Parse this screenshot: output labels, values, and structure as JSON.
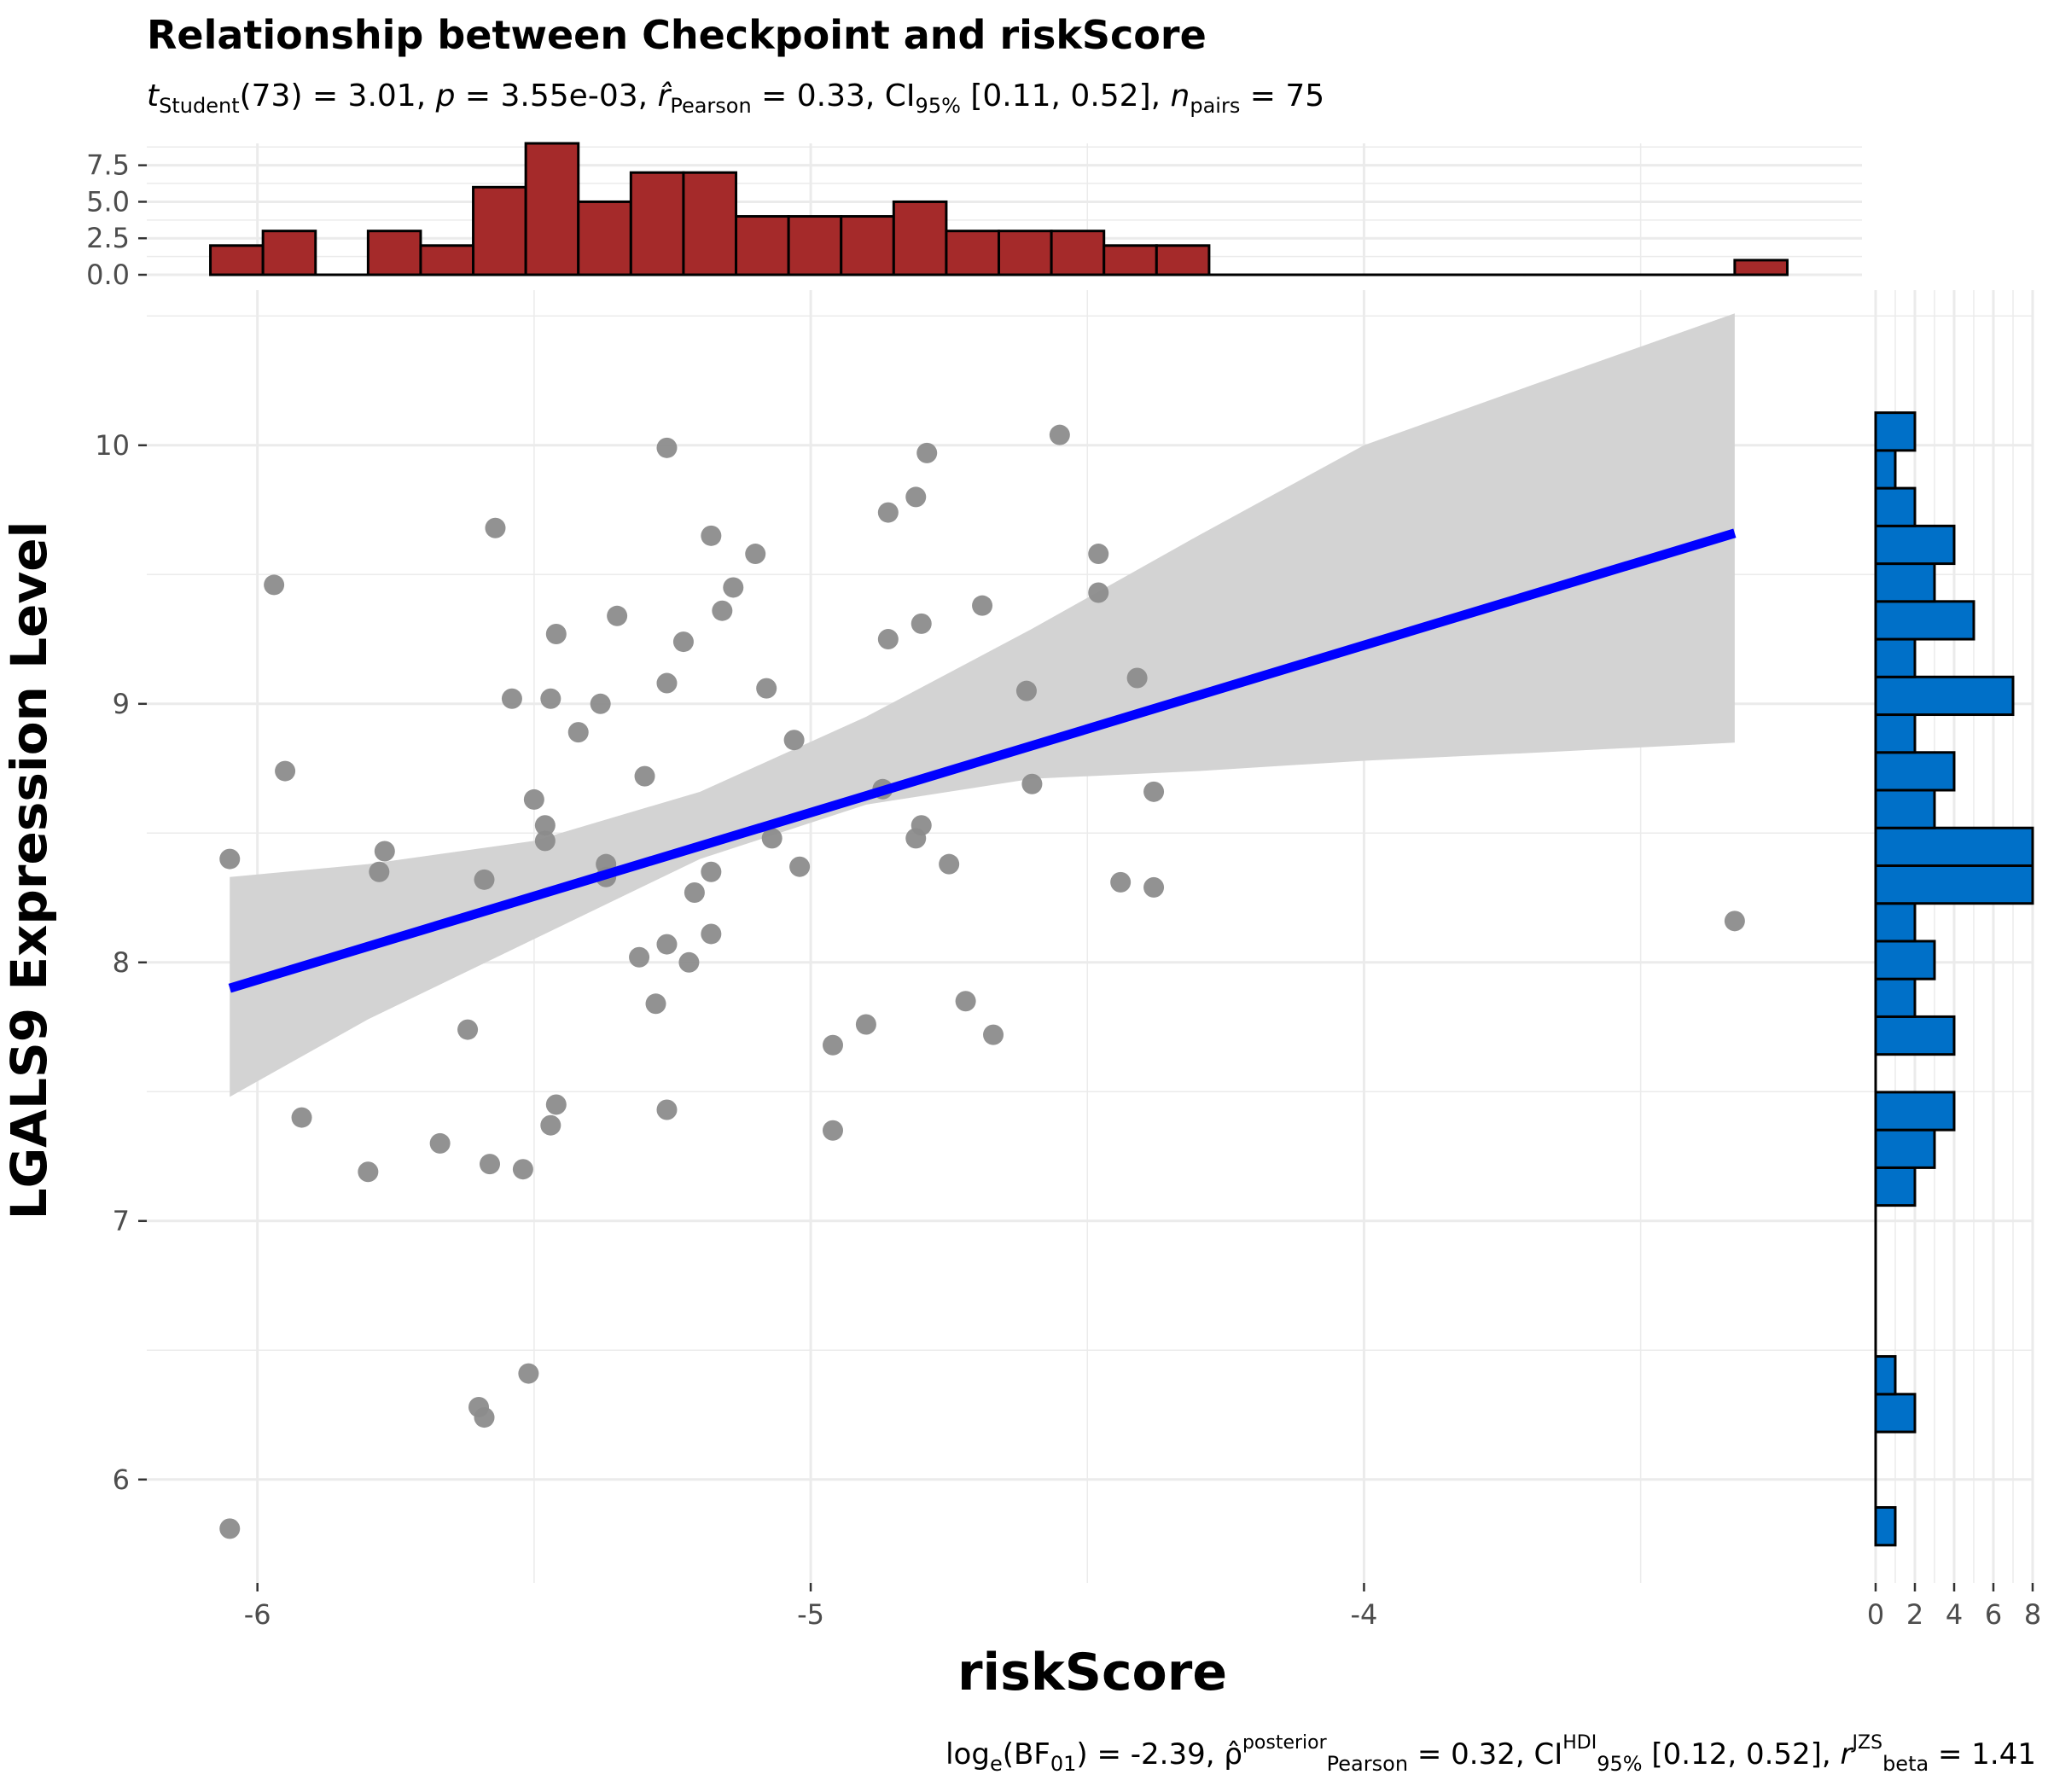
{
  "title": "Relationship between Checkpoint and riskScore",
  "subtitle": {
    "t_sym": "t",
    "t_sub": "Student",
    "t_rest": "(73) = 3.01, ",
    "p_sym": "p",
    "p_rest": " = 3.55e-03, ",
    "r_sym": "r̂",
    "r_sub": "Pearson",
    "r_rest": " = 0.33, CI",
    "ci_sub": "95%",
    "ci_rest": " [0.11, 0.52], ",
    "n_sym": "n",
    "n_sub": "pairs",
    "n_rest": " = 75"
  },
  "caption": {
    "log": "log",
    "log_sub": "e",
    "bf": "(BF",
    "bf_sub": "01",
    "bf_rest": ") = -2.39, ρ̂",
    "rho_sup": "posterior",
    "rho_sub": "Pearson",
    "rho_rest": " = 0.32, CI",
    "ci_sup": "HDI",
    "ci_sub": "95%",
    "ci_rest": " [0.12, 0.52], ",
    "r_sym": "r",
    "r_sup": "JZS",
    "r_sub": "beta",
    "r_rest": " = 1.41"
  },
  "chart_data": {
    "type": "scatter",
    "xlabel": "riskScore",
    "ylabel": "LGALS9 Expression Level",
    "xlim": [
      -6.2,
      -3.1
    ],
    "ylim": [
      5.6,
      10.6
    ],
    "x_ticks": [
      -6,
      -5,
      -4
    ],
    "x_tick_labels": [
      "-6",
      "-5",
      "-4"
    ],
    "y_ticks": [
      6,
      7,
      8,
      9,
      10
    ],
    "y_tick_labels": [
      "6",
      "7",
      "8",
      "9",
      "10"
    ],
    "grid": true,
    "colors": {
      "points": "#8c8c8c",
      "fit_line": "#0000ff",
      "ci_band": "#d3d3d3",
      "top_histogram": "#a52a2a",
      "right_histogram": "#0070c8",
      "grid": "#ebebeb"
    },
    "points": [
      [
        -6.05,
        8.4
      ],
      [
        -5.97,
        9.46
      ],
      [
        -5.95,
        8.74
      ],
      [
        -5.92,
        7.4
      ],
      [
        -5.78,
        8.35
      ],
      [
        -5.77,
        8.43
      ],
      [
        -5.8,
        7.19
      ],
      [
        -5.67,
        7.3
      ],
      [
        -5.62,
        7.74
      ],
      [
        -5.6,
        6.28
      ],
      [
        -5.59,
        6.24
      ],
      [
        -5.59,
        8.32
      ],
      [
        -5.58,
        7.22
      ],
      [
        -5.57,
        9.68
      ],
      [
        -5.54,
        9.02
      ],
      [
        -5.52,
        7.2
      ],
      [
        -5.51,
        6.41
      ],
      [
        -5.5,
        8.63
      ],
      [
        -5.48,
        8.47
      ],
      [
        -5.48,
        8.53
      ],
      [
        -5.47,
        9.02
      ],
      [
        -5.47,
        7.37
      ],
      [
        -5.46,
        7.45
      ],
      [
        -5.46,
        9.27
      ],
      [
        -5.42,
        8.89
      ],
      [
        -5.38,
        9.0
      ],
      [
        -5.37,
        8.38
      ],
      [
        -5.37,
        8.33
      ],
      [
        -5.35,
        9.34
      ],
      [
        -5.31,
        8.02
      ],
      [
        -5.3,
        8.72
      ],
      [
        -5.28,
        7.84
      ],
      [
        -5.26,
        9.08
      ],
      [
        -5.26,
        8.07
      ],
      [
        -5.26,
        9.99
      ],
      [
        -5.26,
        7.43
      ],
      [
        -5.23,
        9.24
      ],
      [
        -5.22,
        8.0
      ],
      [
        -5.21,
        8.27
      ],
      [
        -5.18,
        8.35
      ],
      [
        -5.18,
        9.65
      ],
      [
        -5.18,
        8.11
      ],
      [
        -5.16,
        9.36
      ],
      [
        -5.14,
        9.45
      ],
      [
        -5.1,
        9.58
      ],
      [
        -5.08,
        9.06
      ],
      [
        -5.07,
        8.48
      ],
      [
        -5.03,
        8.86
      ],
      [
        -5.02,
        8.37
      ],
      [
        -4.96,
        7.68
      ],
      [
        -4.96,
        7.35
      ],
      [
        -4.9,
        7.76
      ],
      [
        -4.87,
        8.67
      ],
      [
        -4.86,
        9.74
      ],
      [
        -4.86,
        9.25
      ],
      [
        -4.81,
        8.48
      ],
      [
        -4.81,
        9.8
      ],
      [
        -4.8,
        9.31
      ],
      [
        -4.8,
        8.53
      ],
      [
        -4.79,
        9.97
      ],
      [
        -4.75,
        8.38
      ],
      [
        -4.72,
        7.85
      ],
      [
        -4.69,
        9.38
      ],
      [
        -4.67,
        7.72
      ],
      [
        -4.61,
        9.05
      ],
      [
        -4.6,
        8.69
      ],
      [
        -4.55,
        10.04
      ],
      [
        -4.48,
        9.58
      ],
      [
        -4.48,
        9.43
      ],
      [
        -4.44,
        8.31
      ],
      [
        -4.41,
        9.1
      ],
      [
        -4.38,
        8.29
      ],
      [
        -4.38,
        8.66
      ],
      [
        -3.33,
        8.16
      ],
      [
        -6.05,
        5.81
      ]
    ],
    "fit_line": {
      "x": [
        -6.05,
        -3.33
      ],
      "y": [
        7.9,
        9.66
      ]
    },
    "ci_band": {
      "x": [
        -6.05,
        -5.8,
        -5.5,
        -5.2,
        -4.9,
        -4.6,
        -4.3,
        -4.0,
        -3.7,
        -3.33
      ],
      "upper": [
        8.33,
        8.38,
        8.47,
        8.66,
        8.95,
        9.29,
        9.65,
        10.0,
        10.23,
        10.51
      ],
      "lower": [
        7.48,
        7.78,
        8.09,
        8.4,
        8.61,
        8.71,
        8.74,
        8.78,
        8.81,
        8.85
      ]
    },
    "top_histogram": {
      "ylim": [
        0,
        9
      ],
      "y_ticks": [
        0.0,
        2.5,
        5.0,
        7.5
      ],
      "y_tick_labels": [
        "0.0",
        "2.5",
        "5.0",
        "7.5"
      ],
      "bin_edges": [
        -6.085,
        -5.99,
        -5.895,
        -5.8,
        -5.705,
        -5.61,
        -5.515,
        -5.42,
        -5.325,
        -5.23,
        -5.135,
        -5.04,
        -4.945,
        -4.85,
        -4.755,
        -4.66,
        -4.565,
        -4.47,
        -4.375,
        -4.28,
        -4.185,
        -4.09,
        -3.995,
        -3.9,
        -3.805,
        -3.71,
        -3.615,
        -3.52,
        -3.425,
        -3.33,
        -3.235
      ],
      "counts": [
        2,
        3,
        0,
        3,
        2,
        6,
        9,
        5,
        7,
        7,
        4,
        4,
        4,
        5,
        3,
        3,
        3,
        2,
        2,
        0,
        0,
        0,
        0,
        0,
        0,
        0,
        0,
        0,
        0,
        1
      ]
    },
    "right_histogram": {
      "xlim": [
        0,
        8
      ],
      "x_ticks": [
        0,
        2,
        4,
        6,
        8
      ],
      "x_tick_labels": [
        "0",
        "2",
        "4",
        "6",
        "8"
      ],
      "bin_edges": [
        5.746,
        5.892,
        6.038,
        6.184,
        6.33,
        6.476,
        6.622,
        6.768,
        6.914,
        7.06,
        7.206,
        7.352,
        7.498,
        7.644,
        7.79,
        7.936,
        8.082,
        8.228,
        8.374,
        8.52,
        8.666,
        8.812,
        8.958,
        9.104,
        9.25,
        9.396,
        9.542,
        9.688,
        9.834,
        9.98,
        10.126
      ],
      "counts": [
        1,
        0,
        0,
        2,
        1,
        0,
        0,
        0,
        0,
        2,
        3,
        4,
        0,
        4,
        2,
        3,
        2,
        8,
        8,
        3,
        4,
        2,
        7,
        2,
        5,
        3,
        4,
        2,
        1,
        2
      ]
    }
  }
}
